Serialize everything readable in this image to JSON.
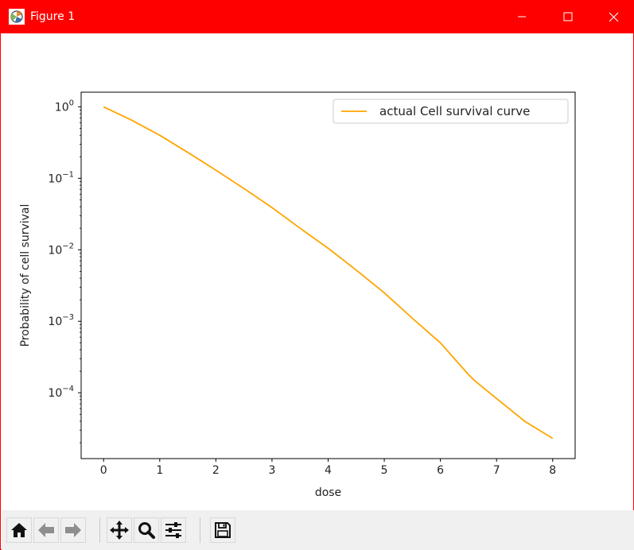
{
  "window": {
    "title": "Figure 1",
    "titlebar_color": "#ff0000",
    "icon": "matplotlib-figure-icon",
    "controls": [
      "minimize-icon",
      "maximize-icon",
      "close-icon"
    ]
  },
  "toolbar": {
    "buttons": [
      {
        "name": "home",
        "icon": "home-icon"
      },
      {
        "name": "back",
        "icon": "arrow-left-icon"
      },
      {
        "name": "forward",
        "icon": "arrow-right-icon"
      },
      {
        "name": "pan",
        "icon": "move-icon"
      },
      {
        "name": "zoom",
        "icon": "magnifier-icon"
      },
      {
        "name": "configure-subplots",
        "icon": "sliders-icon"
      },
      {
        "name": "save",
        "icon": "floppy-icon"
      }
    ]
  },
  "chart_data": {
    "type": "line",
    "xlabel": "dose",
    "ylabel": "Probability of cell survival",
    "yscale": "log",
    "xlim": [
      -0.4,
      8.4
    ],
    "ylim": [
      1.2e-05,
      1.6
    ],
    "xticks": [
      0,
      1,
      2,
      3,
      4,
      5,
      6,
      7,
      8
    ],
    "yticks": [
      {
        "value": 1,
        "base": "10",
        "exp": "0"
      },
      {
        "value": 0.1,
        "base": "10",
        "exp": "−1"
      },
      {
        "value": 0.01,
        "base": "10",
        "exp": "−2"
      },
      {
        "value": 0.001,
        "base": "10",
        "exp": "−3"
      },
      {
        "value": 0.0001,
        "base": "10",
        "exp": "−4"
      }
    ],
    "legend": {
      "position": "top-right"
    },
    "series": [
      {
        "name": "actual Cell survival curve",
        "color": "#ffa500",
        "x": [
          0,
          0.5,
          1,
          1.5,
          2,
          2.5,
          3,
          3.5,
          4,
          4.5,
          5,
          5.5,
          6,
          6.5,
          6.6,
          7,
          7.5,
          8
        ],
        "y": [
          1.0,
          0.65,
          0.4,
          0.23,
          0.13,
          0.072,
          0.039,
          0.02,
          0.0105,
          0.0052,
          0.0025,
          0.0011,
          0.0005,
          0.00018,
          0.00015,
          8.3e-05,
          4e-05,
          2.3e-05
        ]
      }
    ],
    "grid": false
  }
}
